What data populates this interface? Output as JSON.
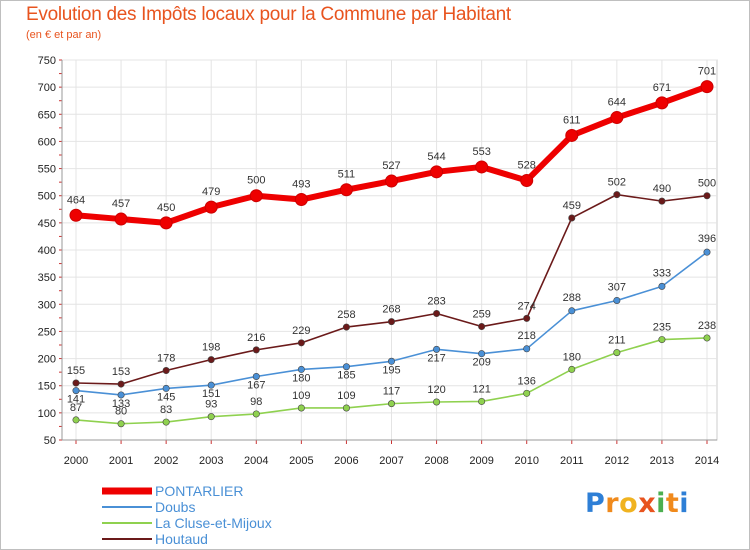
{
  "title": "Evolution des Impôts locaux pour la Commune par Habitant",
  "subtitle": "(en € et par an)",
  "logo": {
    "letters": [
      "P",
      "r",
      "o",
      "x",
      "i",
      "t",
      "i"
    ],
    "colors": [
      "#2e7fd6",
      "#f08a1c",
      "#f0b320",
      "#e8541f",
      "#4caf50",
      "#f08a1c",
      "#2e7fd6"
    ]
  },
  "chart_data": {
    "type": "line",
    "title": "Evolution des Impôts locaux pour la Commune par Habitant",
    "subtitle": "(en € et par an)",
    "x": [
      "2000",
      "2001",
      "2002",
      "2003",
      "2004",
      "2005",
      "2006",
      "2007",
      "2008",
      "2009",
      "2010",
      "2011",
      "2012",
      "2013",
      "2014"
    ],
    "ylim": [
      50,
      750
    ],
    "yticks": [
      50,
      100,
      150,
      200,
      250,
      300,
      350,
      400,
      450,
      500,
      550,
      600,
      650,
      700,
      750
    ],
    "grid": true,
    "legend_position": "bottom-left",
    "series": [
      {
        "name": "PONTARLIER",
        "color": "#ee0000",
        "values": [
          464,
          457,
          450,
          479,
          500,
          493,
          511,
          527,
          544,
          553,
          528,
          611,
          644,
          671,
          701
        ]
      },
      {
        "name": "Doubs",
        "color": "#4a90d6",
        "values": [
          141,
          133,
          145,
          151,
          167,
          180,
          185,
          195,
          217,
          209,
          218,
          288,
          307,
          333,
          396
        ]
      },
      {
        "name": "La Cluse-et-Mijoux",
        "color": "#8fd14f",
        "values": [
          87,
          80,
          83,
          93,
          98,
          109,
          109,
          117,
          120,
          121,
          136,
          180,
          211,
          235,
          238
        ]
      },
      {
        "name": "Houtaud",
        "color": "#6b1a1a",
        "values": [
          155,
          153,
          178,
          198,
          216,
          229,
          258,
          268,
          283,
          259,
          274,
          459,
          502,
          490,
          500
        ]
      }
    ]
  }
}
